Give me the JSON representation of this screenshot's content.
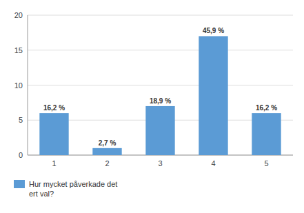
{
  "chart_data": {
    "type": "bar",
    "categories": [
      "1",
      "2",
      "3",
      "4",
      "5"
    ],
    "series": [
      {
        "name": "Hur mycket påverkade det\nert val?",
        "color": "#5b9bd5",
        "values": [
          6,
          1,
          7,
          17,
          6
        ],
        "value_labels": [
          "16,2 %",
          "2,7 %",
          "18,9 %",
          "45,9 %",
          "16,2 %"
        ]
      }
    ],
    "ylim": [
      0,
      20
    ],
    "yticks": [
      0,
      5,
      10,
      15,
      20
    ],
    "grid": true,
    "legend": "bottom",
    "data_labels": true
  }
}
